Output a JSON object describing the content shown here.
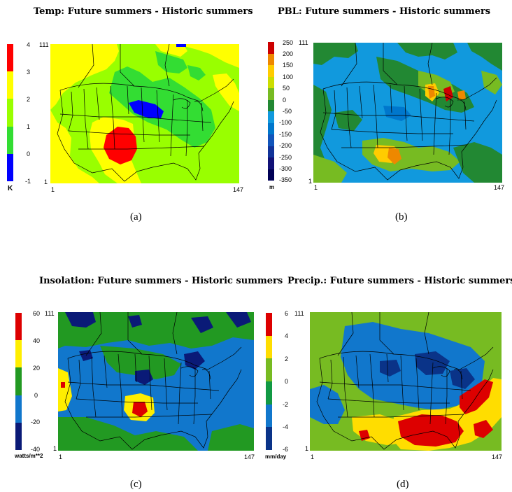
{
  "panels": [
    {
      "id": "a",
      "title": "Temp: Future summers - Historic summers",
      "caption": "(a)",
      "unit": "K",
      "scale_labels": [
        "4",
        "3",
        "2",
        "1",
        "0",
        "-1"
      ],
      "colors": [
        "#ff0000",
        "#ffff00",
        "#99ff00",
        "#33dd33",
        "#0000ff"
      ],
      "axis": {
        "y_top": "111",
        "y_bottom": "1",
        "x_left": "1",
        "x_right": "147"
      }
    },
    {
      "id": "b",
      "title": "PBL: Future summers - Historic summers",
      "caption": "(b)",
      "unit": "m",
      "scale_labels": [
        "250",
        "200",
        "150",
        "100",
        "50",
        "0",
        "-50",
        "-100",
        "-150",
        "-200",
        "-250",
        "-300",
        "-350"
      ],
      "colors": [
        "#cc0000",
        "#ee8800",
        "#ffcc00",
        "#ccdd00",
        "#77bb22",
        "#228833",
        "#1199dd",
        "#0077cc",
        "#1155bb",
        "#113399",
        "#111177",
        "#000055"
      ],
      "axis": {
        "y_top": "111",
        "y_bottom": "1",
        "x_left": "1",
        "x_right": "147"
      }
    },
    {
      "id": "c",
      "title": "Insolation: Future summers - Historic summers",
      "caption": "(c)",
      "unit": "watts/m**2",
      "scale_labels": [
        "60",
        "40",
        "20",
        "0",
        "-20",
        "-40"
      ],
      "colors": [
        "#dd0000",
        "#ffee00",
        "#229922",
        "#1177cc",
        "#0a1a77"
      ],
      "axis": {
        "y_top": "111",
        "y_bottom": "1",
        "x_left": "1",
        "x_right": "147"
      }
    },
    {
      "id": "d",
      "title": "Precip.: Future summers - Historic summers",
      "caption": "(d)",
      "unit": "mm/day",
      "scale_labels": [
        "6",
        "4",
        "2",
        "0",
        "-2",
        "-4",
        "-6"
      ],
      "colors": [
        "#dd0000",
        "#ffdd00",
        "#77bb22",
        "#119944",
        "#1177cc",
        "#0a3388"
      ],
      "axis": {
        "y_top": "111",
        "y_bottom": "1",
        "x_left": "1",
        "x_right": "147"
      }
    }
  ]
}
